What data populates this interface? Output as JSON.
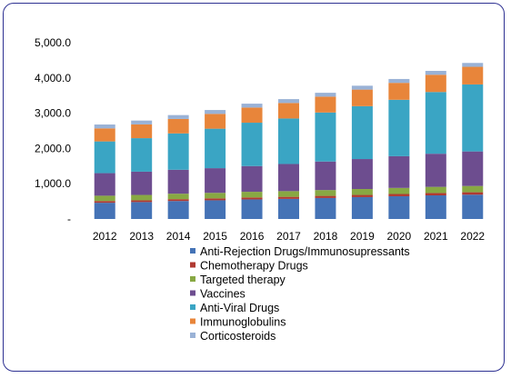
{
  "chart_data": {
    "type": "bar",
    "stacked": true,
    "categories": [
      "2012",
      "2013",
      "2014",
      "2015",
      "2016",
      "2017",
      "2018",
      "2019",
      "2020",
      "2021",
      "2022"
    ],
    "yticks": [
      "-",
      "1,000.0",
      "2,000.0",
      "3,000.0",
      "4,000.0",
      "5,000.0"
    ],
    "ytick_values": [
      0,
      1000,
      2000,
      3000,
      4000,
      5000
    ],
    "ylim": [
      0,
      5000
    ],
    "grid": false,
    "legend_position": "bottom",
    "series": [
      {
        "name": "Anti-Rejection Drugs/Immunosupressants",
        "color": "#4573b6",
        "values": [
          460,
          480,
          510,
          530,
          555,
          570,
          595,
          620,
          645,
          670,
          690
        ]
      },
      {
        "name": "Chemotherapy Drugs",
        "color": "#b03a32",
        "values": [
          50,
          50,
          52,
          54,
          56,
          58,
          60,
          62,
          64,
          66,
          68
        ]
      },
      {
        "name": "Targeted therapy",
        "color": "#88a843",
        "values": [
          150,
          152,
          155,
          157,
          160,
          162,
          165,
          168,
          172,
          175,
          178
        ]
      },
      {
        "name": "Vaccines",
        "color": "#6d4d8f",
        "values": [
          640,
          660,
          680,
          700,
          730,
          770,
          810,
          850,
          900,
          940,
          980
        ]
      },
      {
        "name": "Anti-Viral Drugs",
        "color": "#3aa5c4",
        "values": [
          900,
          950,
          1030,
          1120,
          1230,
          1290,
          1390,
          1500,
          1600,
          1750,
          1900
        ]
      },
      {
        "name": "Immunoglobulins",
        "color": "#e8853a",
        "values": [
          370,
          390,
          410,
          420,
          430,
          440,
          450,
          470,
          480,
          490,
          500
        ]
      },
      {
        "name": "Corticosteroids",
        "color": "#9ab2d6",
        "values": [
          110,
          110,
          110,
          110,
          110,
          110,
          110,
          110,
          110,
          110,
          110
        ]
      }
    ]
  }
}
